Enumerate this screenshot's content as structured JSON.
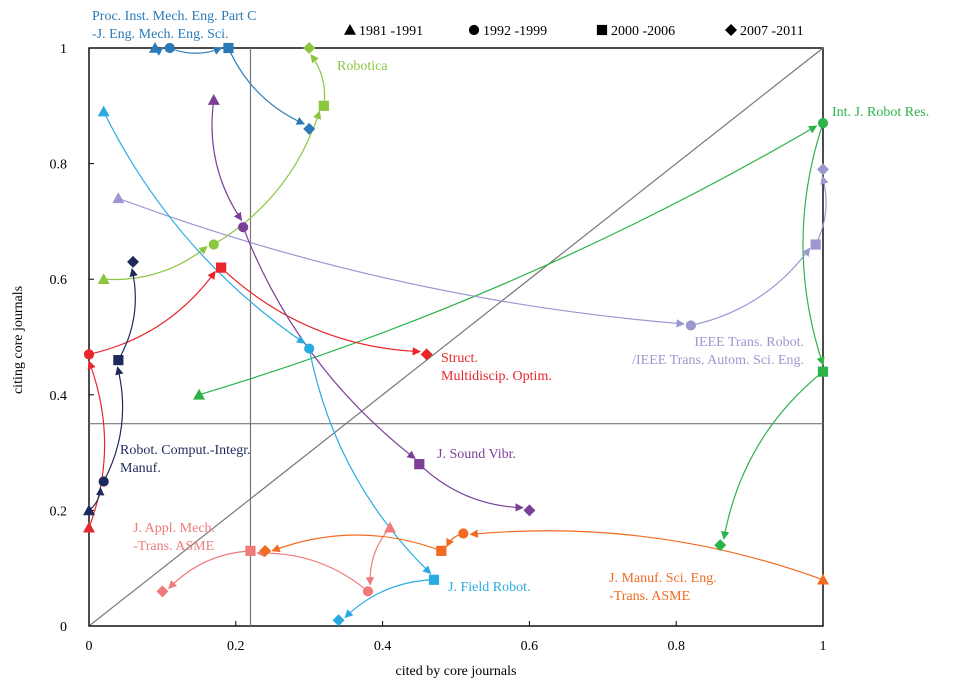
{
  "chart_data": {
    "type": "scatter",
    "title": "",
    "xlabel": "cited by core journals",
    "ylabel": "citing core journals",
    "xlim": [
      0,
      1
    ],
    "ylim": [
      0,
      1
    ],
    "x_ticks": [
      {
        "v": 0,
        "label": "0"
      },
      {
        "v": 0.2,
        "label": "0.2"
      },
      {
        "v": 0.4,
        "label": "0.4"
      },
      {
        "v": 0.6,
        "label": "0.6"
      },
      {
        "v": 0.8,
        "label": "0.8"
      },
      {
        "v": 1,
        "label": "1"
      }
    ],
    "y_ticks": [
      {
        "v": 0,
        "label": "0"
      },
      {
        "v": 0.2,
        "label": "0.2"
      },
      {
        "v": 0.4,
        "label": "0.4"
      },
      {
        "v": 0.6,
        "label": "0.6"
      },
      {
        "v": 0.8,
        "label": "0.8"
      },
      {
        "v": 1,
        "label": "1"
      }
    ],
    "reference_lines": {
      "vertical_x": 0.22,
      "horizontal_y": 0.35,
      "diagonal": true
    },
    "grid": false,
    "legend_position": "top",
    "legend": [
      {
        "marker": "triangle",
        "label": "1981 -1991"
      },
      {
        "marker": "circle",
        "label": "1992 -1999"
      },
      {
        "marker": "square",
        "label": "2000 -2006"
      },
      {
        "marker": "diamond",
        "label": "2007 -2011"
      }
    ],
    "series": [
      {
        "name": "Proc. Inst. Mech. Eng. Part C -J. Eng. Mech. Eng. Sci.",
        "label_lines": [
          "Proc. Inst. Mech. Eng. Part C",
          "-J. Eng. Mech. Eng. Sci."
        ],
        "color": "#2a7ab8",
        "points": [
          {
            "period": "1981 -1991",
            "x": 0.09,
            "y": 1.0
          },
          {
            "period": "1992 -1999",
            "x": 0.11,
            "y": 1.0
          },
          {
            "period": "2000 -2006",
            "x": 0.19,
            "y": 1.0
          },
          {
            "period": "2007 -2011",
            "x": 0.3,
            "y": 0.86
          }
        ]
      },
      {
        "name": "Robotica",
        "label_lines": [
          "Robotica"
        ],
        "color": "#8cc63f",
        "points": [
          {
            "period": "1981 -1991",
            "x": 0.02,
            "y": 0.6
          },
          {
            "period": "1992 -1999",
            "x": 0.17,
            "y": 0.66
          },
          {
            "period": "2000 -2006",
            "x": 0.32,
            "y": 0.9
          },
          {
            "period": "2007 -2011",
            "x": 0.3,
            "y": 1.0
          }
        ]
      },
      {
        "name": "Int. J. Robot Res.",
        "label_lines": [
          "Int. J. Robot Res."
        ],
        "color": "#2db34a",
        "points": [
          {
            "period": "1981 -1991",
            "x": 0.15,
            "y": 0.4
          },
          {
            "period": "1992 -1999",
            "x": 1.0,
            "y": 0.87
          },
          {
            "period": "2000 -2006",
            "x": 1.0,
            "y": 0.44
          },
          {
            "period": "2007 -2011",
            "x": 0.86,
            "y": 0.14
          }
        ]
      },
      {
        "name": "IEEE Trans. Robot. /IEEE Trans. Autom. Sci. Eng.",
        "label_lines": [
          "IEEE Trans. Robot.",
          "/IEEE Trans. Autom. Sci. Eng."
        ],
        "color": "#9b98cf",
        "points": [
          {
            "period": "1981 -1991",
            "x": 0.04,
            "y": 0.74
          },
          {
            "period": "1992 -1999",
            "x": 0.82,
            "y": 0.52
          },
          {
            "period": "2000 -2006",
            "x": 0.99,
            "y": 0.66
          },
          {
            "period": "2007 -2011",
            "x": 1.0,
            "y": 0.79
          }
        ]
      },
      {
        "name": "Struct. Multidiscip. Optim.",
        "label_lines": [
          "Struct.",
          "Multidiscip. Optim."
        ],
        "color": "#e8262b",
        "points": [
          {
            "period": "1981 -1991",
            "x": 0.0,
            "y": 0.17
          },
          {
            "period": "1992 -1999",
            "x": 0.0,
            "y": 0.47
          },
          {
            "period": "2000 -2006",
            "x": 0.18,
            "y": 0.62
          },
          {
            "period": "2007 -2011",
            "x": 0.46,
            "y": 0.47
          }
        ]
      },
      {
        "name": "J. Sound Vibr.",
        "label_lines": [
          "J. Sound Vibr."
        ],
        "color": "#7b3f98",
        "points": [
          {
            "period": "1981 -1991",
            "x": 0.17,
            "y": 0.91
          },
          {
            "period": "1992 -1999",
            "x": 0.21,
            "y": 0.69
          },
          {
            "period": "2000 -2006",
            "x": 0.45,
            "y": 0.28
          },
          {
            "period": "2007 -2011",
            "x": 0.6,
            "y": 0.2
          }
        ]
      },
      {
        "name": "Robot. Comput.-Integr. Manuf.",
        "label_lines": [
          "Robot. Comput.-Integr.",
          "Manuf."
        ],
        "color": "#1f2a5c",
        "points": [
          {
            "period": "1981 -1991",
            "x": 0.0,
            "y": 0.2
          },
          {
            "period": "1992 -1999",
            "x": 0.02,
            "y": 0.25
          },
          {
            "period": "2000 -2006",
            "x": 0.04,
            "y": 0.46
          },
          {
            "period": "2007 -2011",
            "x": 0.06,
            "y": 0.63
          }
        ]
      },
      {
        "name": "J. Field Robot.",
        "label_lines": [
          "J. Field Robot."
        ],
        "color": "#29abe2",
        "points": [
          {
            "period": "1981 -1991",
            "x": 0.02,
            "y": 0.89
          },
          {
            "period": "1992 -1999",
            "x": 0.3,
            "y": 0.48
          },
          {
            "period": "2000 -2006",
            "x": 0.47,
            "y": 0.08
          },
          {
            "period": "2007 -2011",
            "x": 0.34,
            "y": 0.01
          }
        ]
      },
      {
        "name": "J. Appl. Mech. -Trans. ASME",
        "label_lines": [
          "J. Appl. Mech.",
          "-Trans. ASME"
        ],
        "color": "#ef7a7a",
        "points": [
          {
            "period": "1981 -1991",
            "x": 0.41,
            "y": 0.17
          },
          {
            "period": "1992 -1999",
            "x": 0.38,
            "y": 0.06
          },
          {
            "period": "2000 -2006",
            "x": 0.22,
            "y": 0.13
          },
          {
            "period": "2007 -2011",
            "x": 0.1,
            "y": 0.06
          }
        ]
      },
      {
        "name": "J. Manuf. Sci. Eng. -Trans. ASME",
        "label_lines": [
          "J. Manuf. Sci. Eng.",
          "-Trans. ASME"
        ],
        "color": "#f26b22",
        "points": [
          {
            "period": "1981 -1991",
            "x": 1.0,
            "y": 0.08
          },
          {
            "period": "1992 -1999",
            "x": 0.51,
            "y": 0.16
          },
          {
            "period": "2000 -2006",
            "x": 0.48,
            "y": 0.13
          },
          {
            "period": "2007 -2011",
            "x": 0.24,
            "y": 0.13
          }
        ]
      }
    ]
  }
}
